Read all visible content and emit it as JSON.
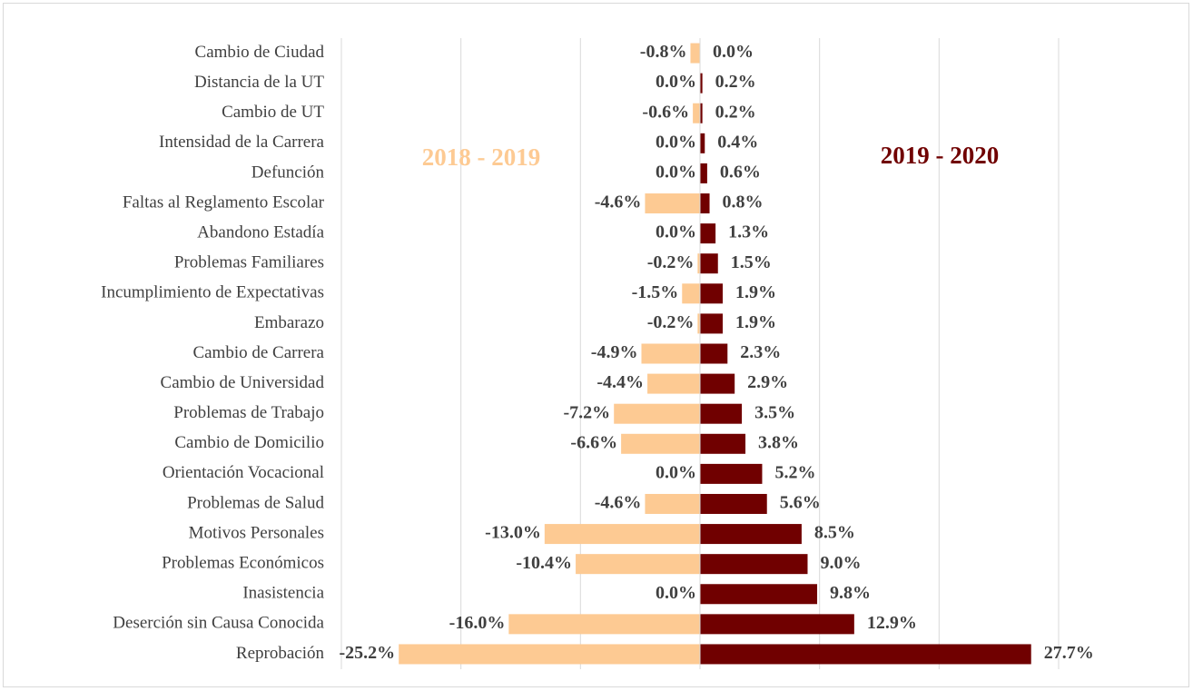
{
  "chart_data": {
    "type": "bar",
    "orientation": "horizontal",
    "categories": [
      "Cambio de  Ciudad",
      "Distancia de la UT",
      "Cambio de UT",
      "Intensidad de la Carrera",
      "Defunción",
      "Faltas al Reglamento Escolar",
      "Abandono Estadía",
      "Problemas Familiares",
      "Incumplimiento de Expectativas",
      "Embarazo",
      "Cambio de Carrera",
      "Cambio de Universidad",
      "Problemas de Trabajo",
      "Cambio de Domicilio",
      "Orientación Vocacional",
      "Problemas de Salud",
      "Motivos Personales",
      "Problemas Económicos",
      "Inasistencia",
      "Deserción sin Causa Conocida",
      "Reprobación"
    ],
    "series": [
      {
        "name": "2018 - 2019",
        "color": "#fdca93",
        "values": [
          -0.8,
          0.0,
          -0.6,
          0.0,
          0.0,
          -4.6,
          0.0,
          -0.2,
          -1.5,
          -0.2,
          -4.9,
          -4.4,
          -7.2,
          -6.6,
          0.0,
          -4.6,
          -13.0,
          -10.4,
          0.0,
          -16.0,
          -25.2
        ],
        "value_labels": [
          "-0.8%",
          "0.0%",
          "-0.6%",
          "0.0%",
          "0.0%",
          "-4.6%",
          "0.0%",
          "-0.2%",
          "-1.5%",
          "-0.2%",
          "-4.9%",
          "-4.4%",
          "-7.2%",
          "-6.6%",
          "0.0%",
          "-4.6%",
          "-13.0%",
          "-10.4%",
          "0.0%",
          "-16.0%",
          "-25.2%"
        ]
      },
      {
        "name": "2019 - 2020",
        "color": "#700000",
        "values": [
          0.0,
          0.2,
          0.2,
          0.4,
          0.6,
          0.8,
          1.3,
          1.5,
          1.9,
          1.9,
          2.3,
          2.9,
          3.5,
          3.8,
          5.2,
          5.6,
          8.5,
          9.0,
          9.8,
          12.9,
          27.7
        ],
        "value_labels": [
          "0.0%",
          "0.2%",
          "0.2%",
          "0.4%",
          "0.6%",
          "0.8%",
          "1.3%",
          "1.5%",
          "1.9%",
          "1.9%",
          "2.3%",
          "2.9%",
          "3.5%",
          "3.8%",
          "5.2%",
          "5.6%",
          "8.5%",
          "9.0%",
          "9.8%",
          "12.9%",
          "27.7%"
        ]
      }
    ],
    "xlim": [
      -30,
      30
    ],
    "xticks": [
      -30,
      -20,
      -10,
      0,
      10,
      20,
      30
    ],
    "grid": true
  }
}
